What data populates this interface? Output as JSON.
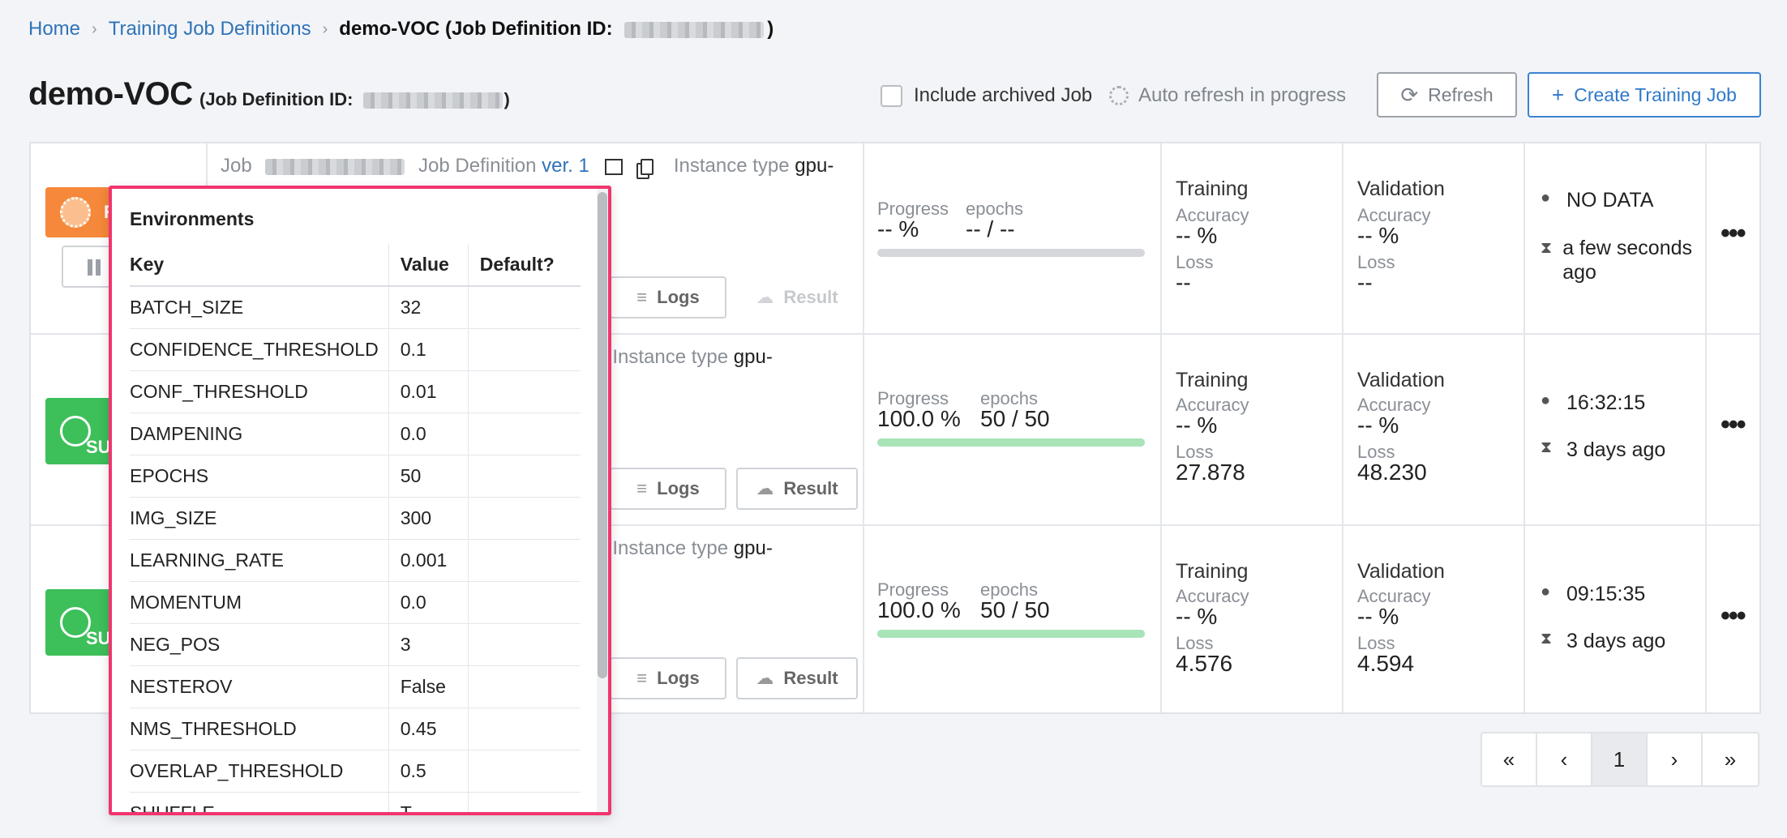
{
  "breadcrumb": {
    "home": "Home",
    "definitions": "Training Job Definitions",
    "current_prefix": "demo-VOC (Job Definition ID:",
    "current_suffix": ")"
  },
  "header": {
    "title": "demo-VOC",
    "subtitle_prefix": "(Job Definition ID:",
    "subtitle_suffix": ")",
    "include_archived_label": "Include archived Job",
    "auto_refresh_label": "Auto refresh in progress",
    "refresh_label": "Refresh",
    "create_label": "Create Training Job"
  },
  "colors": {
    "running": "#f5883a",
    "succeeded": "#3dbf5a",
    "popup_border": "#f0356e",
    "link": "#2f73b8"
  },
  "jobs": [
    {
      "status_text": "R",
      "job_label": "Job",
      "def_label": "Job Definition",
      "version": "ver. 1",
      "instance_label": "Instance type",
      "instance_value": "gpu-",
      "logs_label": "Logs",
      "result_label": "Result",
      "progress_label": "Progress",
      "progress_value": "-- %",
      "epochs_label": "epochs",
      "epochs_value": "-- / --",
      "progress_fraction": 0,
      "training_title": "Training",
      "training_acc_label": "Accuracy",
      "training_acc": "-- %",
      "training_loss_label": "Loss",
      "training_loss": "--",
      "validation_title": "Validation",
      "validation_acc_label": "Accuracy",
      "validation_acc": "-- %",
      "validation_loss_label": "Loss",
      "validation_loss": "--",
      "time": "NO DATA",
      "elapsed": "a few seconds ago"
    },
    {
      "status_text": "SU",
      "instance_label": "Instance type",
      "instance_value": "gpu-",
      "logs_label": "Logs",
      "result_label": "Result",
      "progress_label": "Progress",
      "progress_value": "100.0 %",
      "epochs_label": "epochs",
      "epochs_value": "50 / 50",
      "progress_fraction": 1,
      "training_title": "Training",
      "training_acc_label": "Accuracy",
      "training_acc": "-- %",
      "training_loss_label": "Loss",
      "training_loss": "27.878",
      "validation_title": "Validation",
      "validation_acc_label": "Accuracy",
      "validation_acc": "-- %",
      "validation_loss_label": "Loss",
      "validation_loss": "48.230",
      "time": "16:32:15",
      "elapsed": "3 days ago"
    },
    {
      "status_text": "SU",
      "instance_label": "Instance type",
      "instance_value": "gpu-",
      "logs_label": "Logs",
      "result_label": "Result",
      "progress_label": "Progress",
      "progress_value": "100.0 %",
      "epochs_label": "epochs",
      "epochs_value": "50 / 50",
      "progress_fraction": 1,
      "training_title": "Training",
      "training_acc_label": "Accuracy",
      "training_acc": "-- %",
      "training_loss_label": "Loss",
      "training_loss": "4.576",
      "validation_title": "Validation",
      "validation_acc_label": "Accuracy",
      "validation_acc": "-- %",
      "validation_loss_label": "Loss",
      "validation_loss": "4.594",
      "time": "09:15:35",
      "elapsed": "3 days ago"
    }
  ],
  "pagination": {
    "first": "«",
    "prev": "‹",
    "current": "1",
    "next": "›",
    "last": "»"
  },
  "environments": {
    "title": "Environments",
    "headers": {
      "key": "Key",
      "value": "Value",
      "default": "Default?"
    },
    "rows": [
      {
        "key": "BATCH_SIZE",
        "value": "32"
      },
      {
        "key": "CONFIDENCE_THRESHOLD",
        "value": "0.1"
      },
      {
        "key": "CONF_THRESHOLD",
        "value": "0.01"
      },
      {
        "key": "DAMPENING",
        "value": "0.0"
      },
      {
        "key": "EPOCHS",
        "value": "50"
      },
      {
        "key": "IMG_SIZE",
        "value": "300"
      },
      {
        "key": "LEARNING_RATE",
        "value": "0.001"
      },
      {
        "key": "MOMENTUM",
        "value": "0.0"
      },
      {
        "key": "NEG_POS",
        "value": "3"
      },
      {
        "key": "NESTEROV",
        "value": "False"
      },
      {
        "key": "NMS_THRESHOLD",
        "value": "0.45"
      },
      {
        "key": "OVERLAP_THRESHOLD",
        "value": "0.5"
      },
      {
        "key": "SHUFFLE",
        "value": "T"
      }
    ]
  },
  "icons": {
    "refresh": "refresh-icon",
    "plus": "plus-icon",
    "clock": "clock-icon",
    "hourglass": "hourglass-icon",
    "logs": "logs-icon",
    "cloud": "cloud-download-icon",
    "more": "more-icon",
    "copy": "copy-icon",
    "table": "table-icon"
  }
}
